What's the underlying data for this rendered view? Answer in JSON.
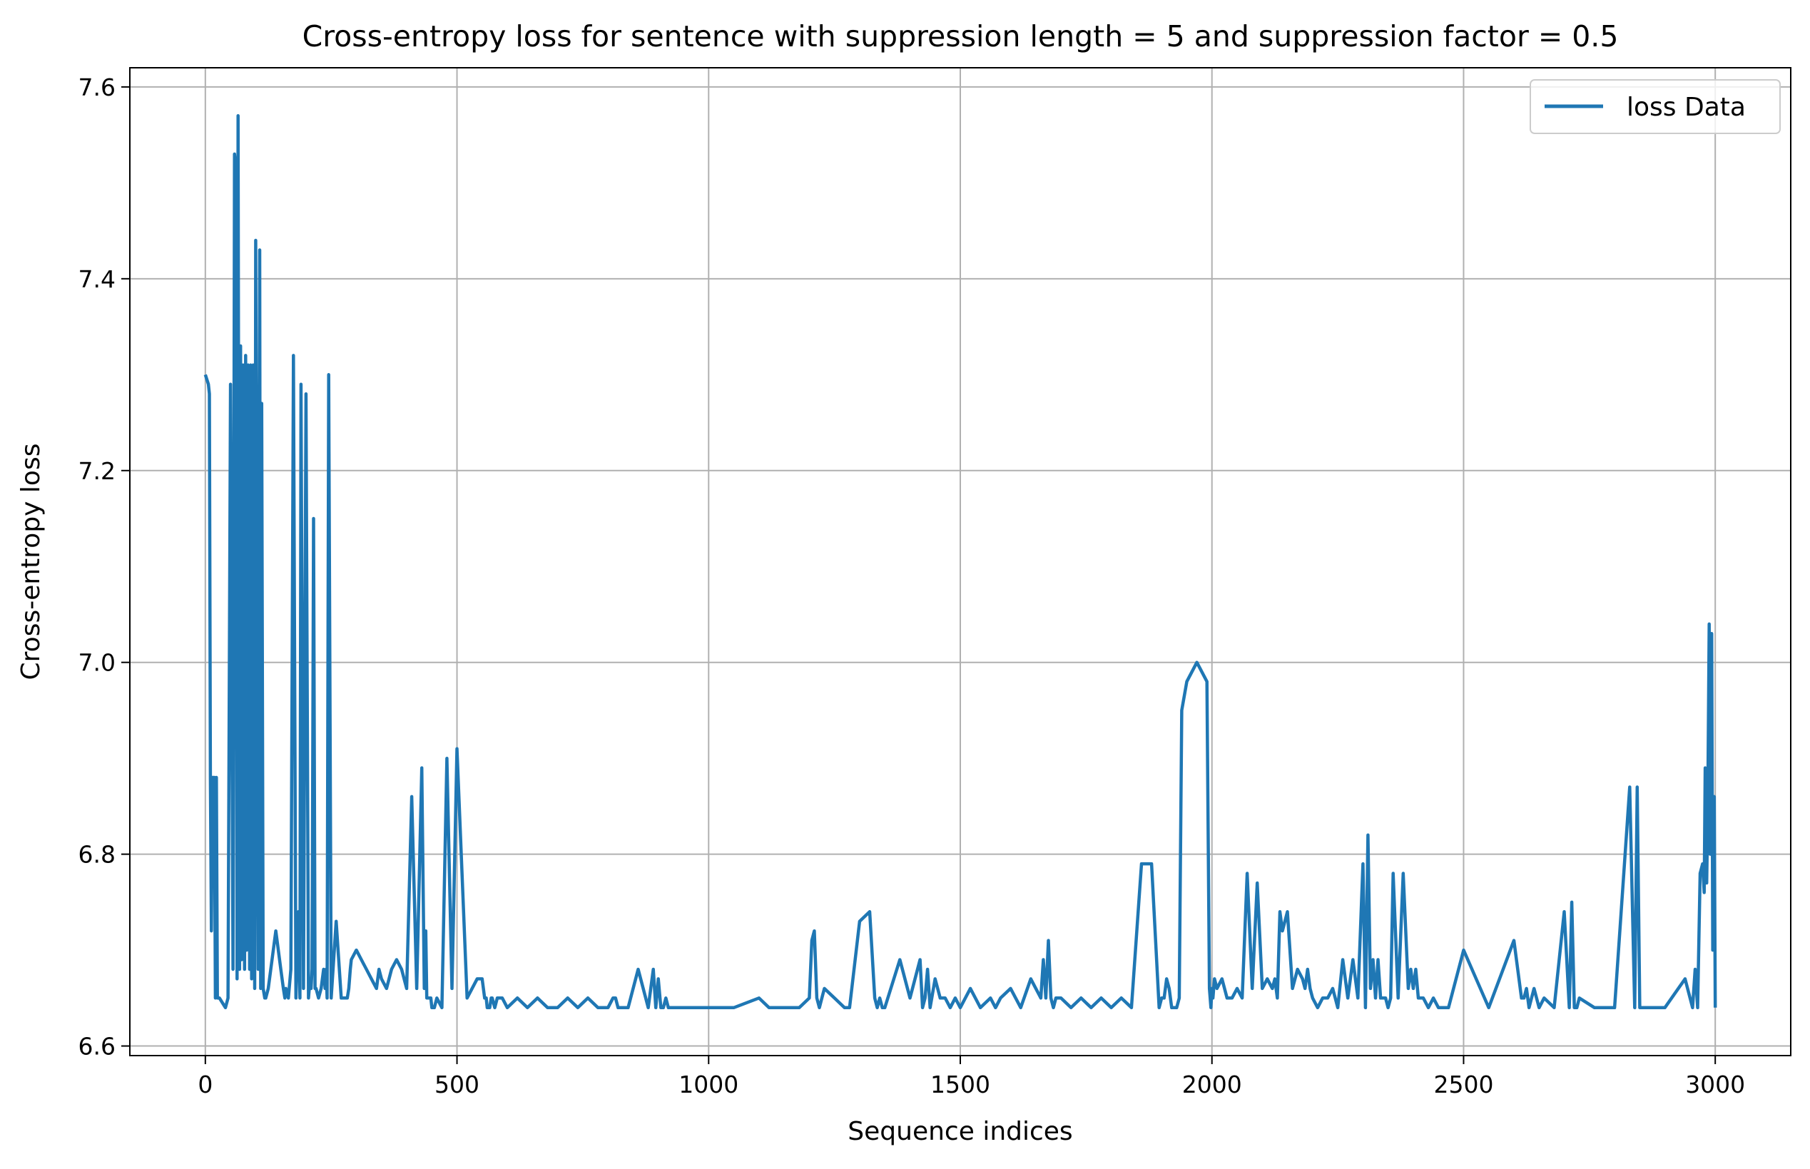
{
  "chart_data": {
    "type": "line",
    "title": "Cross-entropy loss for sentence with suppression length = 5 and suppression factor = 0.5",
    "xlabel": "Sequence indices",
    "ylabel": "Cross-entropy loss",
    "xlim": [
      -150,
      3150
    ],
    "ylim": [
      6.59,
      7.62
    ],
    "xticks": [
      0,
      500,
      1000,
      1500,
      2000,
      2500,
      3000
    ],
    "xtick_labels": [
      "0",
      "500",
      "1000",
      "1500",
      "2000",
      "2500",
      "3000"
    ],
    "yticks": [
      6.6,
      6.8,
      7.0,
      7.2,
      7.4,
      7.6
    ],
    "ytick_labels": [
      "6.6",
      "6.8",
      "7.0",
      "7.2",
      "7.4",
      "7.6"
    ],
    "grid": true,
    "legend_position": "top-right",
    "series": [
      {
        "name": "loss Data",
        "color": "#1f77b4",
        "x": [
          0,
          6,
          8,
          10,
          12,
          14,
          18,
          20,
          22,
          24,
          28,
          40,
          45,
          50,
          55,
          58,
          60,
          63,
          65,
          68,
          70,
          72,
          75,
          78,
          80,
          82,
          85,
          88,
          90,
          92,
          95,
          98,
          100,
          105,
          108,
          110,
          112,
          115,
          118,
          120,
          125,
          140,
          150,
          155,
          158,
          160,
          165,
          170,
          175,
          180,
          185,
          188,
          190,
          195,
          200,
          205,
          208,
          210,
          212,
          215,
          218,
          220,
          225,
          230,
          235,
          238,
          240,
          242,
          245,
          250,
          260,
          270,
          275,
          280,
          282,
          285,
          288,
          290,
          300,
          310,
          320,
          330,
          340,
          345,
          350,
          360,
          370,
          380,
          390,
          400,
          410,
          420,
          430,
          435,
          438,
          440,
          445,
          448,
          450,
          455,
          460,
          470,
          480,
          490,
          500,
          520,
          540,
          550,
          555,
          558,
          560,
          565,
          568,
          570,
          575,
          580,
          585,
          590,
          600,
          620,
          640,
          660,
          680,
          700,
          720,
          740,
          760,
          780,
          800,
          810,
          815,
          820,
          840,
          860,
          880,
          890,
          895,
          900,
          905,
          910,
          915,
          920,
          930,
          950,
          1000,
          1050,
          1100,
          1120,
          1130,
          1140,
          1160,
          1180,
          1200,
          1205,
          1210,
          1215,
          1220,
          1225,
          1230,
          1250,
          1270,
          1280,
          1300,
          1320,
          1330,
          1335,
          1340,
          1345,
          1350,
          1380,
          1400,
          1420,
          1425,
          1430,
          1435,
          1440,
          1450,
          1455,
          1460,
          1470,
          1480,
          1490,
          1500,
          1520,
          1540,
          1560,
          1570,
          1580,
          1600,
          1620,
          1640,
          1660,
          1665,
          1670,
          1675,
          1680,
          1685,
          1690,
          1700,
          1720,
          1740,
          1760,
          1780,
          1800,
          1820,
          1840,
          1860,
          1880,
          1895,
          1900,
          1905,
          1910,
          1915,
          1920,
          1930,
          1935,
          1940,
          1950,
          1970,
          1990,
          1995,
          1998,
          2000,
          2002,
          2005,
          2010,
          2020,
          2030,
          2040,
          2050,
          2060,
          2070,
          2080,
          2090,
          2100,
          2110,
          2120,
          2125,
          2130,
          2135,
          2140,
          2150,
          2160,
          2170,
          2180,
          2185,
          2190,
          2195,
          2200,
          2210,
          2220,
          2230,
          2240,
          2250,
          2260,
          2270,
          2280,
          2290,
          2300,
          2305,
          2310,
          2315,
          2320,
          2325,
          2330,
          2335,
          2340,
          2345,
          2350,
          2355,
          2360,
          2370,
          2380,
          2390,
          2395,
          2400,
          2405,
          2410,
          2420,
          2430,
          2440,
          2450,
          2470,
          2500,
          2550,
          2600,
          2615,
          2620,
          2625,
          2630,
          2640,
          2650,
          2660,
          2680,
          2700,
          2710,
          2715,
          2720,
          2725,
          2730,
          2760,
          2800,
          2830,
          2840,
          2845,
          2850,
          2855,
          2860,
          2900,
          2940,
          2955,
          2960,
          2965,
          2970,
          2975,
          2978,
          2980,
          2983,
          2985,
          2988,
          2990,
          2993,
          2995,
          2998,
          3000
        ],
        "y": [
          7.3,
          7.29,
          7.28,
          6.88,
          6.72,
          6.88,
          6.88,
          6.65,
          6.88,
          6.65,
          6.65,
          6.64,
          6.65,
          7.29,
          6.68,
          7.53,
          7.52,
          6.67,
          7.57,
          6.68,
          7.33,
          6.69,
          7.31,
          6.68,
          7.32,
          6.7,
          7.31,
          6.68,
          7.31,
          6.67,
          7.31,
          6.66,
          7.44,
          6.68,
          7.43,
          6.66,
          7.27,
          6.66,
          6.65,
          6.65,
          6.66,
          6.72,
          6.68,
          6.66,
          6.65,
          6.66,
          6.65,
          6.68,
          7.32,
          6.65,
          6.74,
          6.65,
          7.29,
          6.66,
          7.28,
          6.65,
          6.67,
          6.66,
          6.68,
          7.15,
          6.66,
          6.66,
          6.65,
          6.66,
          6.68,
          6.66,
          6.68,
          6.65,
          7.3,
          6.65,
          6.73,
          6.65,
          6.65,
          6.65,
          6.65,
          6.66,
          6.68,
          6.69,
          6.7,
          6.69,
          6.68,
          6.67,
          6.66,
          6.68,
          6.67,
          6.66,
          6.68,
          6.69,
          6.68,
          6.66,
          6.86,
          6.66,
          6.89,
          6.66,
          6.72,
          6.65,
          6.65,
          6.65,
          6.64,
          6.64,
          6.65,
          6.64,
          6.9,
          6.66,
          6.91,
          6.65,
          6.67,
          6.67,
          6.65,
          6.65,
          6.64,
          6.64,
          6.65,
          6.65,
          6.64,
          6.65,
          6.65,
          6.65,
          6.64,
          6.65,
          6.64,
          6.65,
          6.64,
          6.64,
          6.65,
          6.64,
          6.65,
          6.64,
          6.64,
          6.65,
          6.65,
          6.64,
          6.64,
          6.68,
          6.64,
          6.68,
          6.64,
          6.67,
          6.64,
          6.64,
          6.65,
          6.64,
          6.64,
          6.64,
          6.64,
          6.64,
          6.65,
          6.64,
          6.64,
          6.64,
          6.64,
          6.64,
          6.65,
          6.71,
          6.72,
          6.65,
          6.64,
          6.65,
          6.66,
          6.65,
          6.64,
          6.64,
          6.73,
          6.74,
          6.65,
          6.64,
          6.65,
          6.64,
          6.64,
          6.69,
          6.65,
          6.69,
          6.64,
          6.65,
          6.68,
          6.64,
          6.67,
          6.66,
          6.65,
          6.65,
          6.64,
          6.65,
          6.64,
          6.66,
          6.64,
          6.65,
          6.64,
          6.65,
          6.66,
          6.64,
          6.67,
          6.65,
          6.69,
          6.65,
          6.71,
          6.65,
          6.64,
          6.65,
          6.65,
          6.64,
          6.65,
          6.64,
          6.65,
          6.64,
          6.65,
          6.64,
          6.79,
          6.79,
          6.64,
          6.65,
          6.65,
          6.67,
          6.66,
          6.64,
          6.64,
          6.65,
          6.95,
          6.98,
          7.0,
          6.98,
          6.66,
          6.64,
          6.66,
          6.65,
          6.67,
          6.66,
          6.67,
          6.65,
          6.65,
          6.66,
          6.65,
          6.78,
          6.66,
          6.77,
          6.66,
          6.67,
          6.66,
          6.67,
          6.65,
          6.74,
          6.72,
          6.74,
          6.66,
          6.68,
          6.67,
          6.66,
          6.68,
          6.66,
          6.65,
          6.64,
          6.65,
          6.65,
          6.66,
          6.64,
          6.69,
          6.65,
          6.69,
          6.65,
          6.79,
          6.64,
          6.82,
          6.66,
          6.69,
          6.65,
          6.69,
          6.65,
          6.65,
          6.65,
          6.64,
          6.65,
          6.78,
          6.65,
          6.78,
          6.66,
          6.68,
          6.66,
          6.68,
          6.65,
          6.65,
          6.64,
          6.65,
          6.64,
          6.64,
          6.7,
          6.64,
          6.71,
          6.65,
          6.65,
          6.66,
          6.64,
          6.66,
          6.64,
          6.65,
          6.64,
          6.74,
          6.64,
          6.75,
          6.64,
          6.64,
          6.65,
          6.64,
          6.64,
          6.87,
          6.64,
          6.87,
          6.64,
          6.64,
          6.64,
          6.64,
          6.67,
          6.64,
          6.68,
          6.64,
          6.78,
          6.79,
          6.76,
          6.89,
          6.77,
          6.84,
          7.04,
          6.8,
          7.03,
          6.7,
          6.86,
          6.64
        ]
      }
    ]
  }
}
